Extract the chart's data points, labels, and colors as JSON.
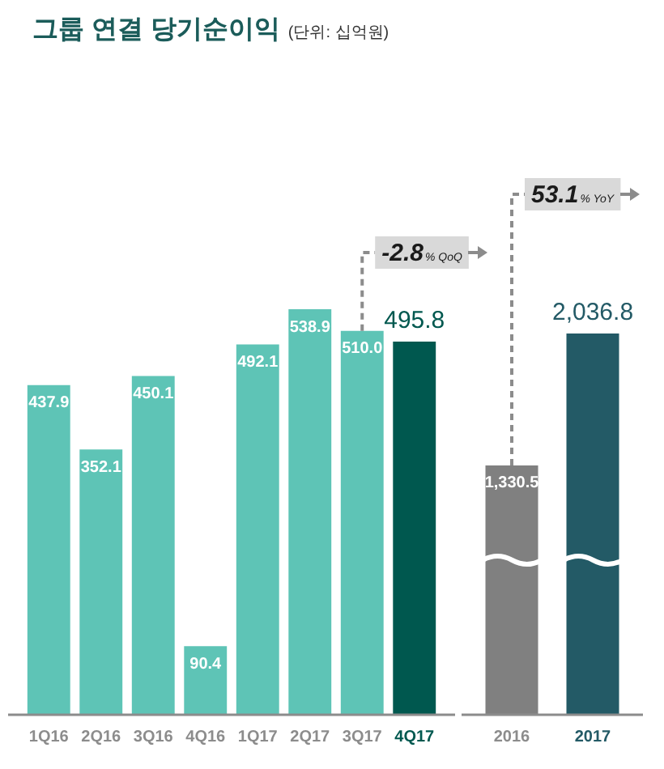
{
  "chart_data": [
    {
      "type": "bar",
      "title": "그룹 연결 당기순이익",
      "subtitle": "(단위: 십억원)",
      "categories": [
        "1Q16",
        "2Q16",
        "3Q16",
        "4Q16",
        "1Q17",
        "2Q17",
        "3Q17",
        "4Q17"
      ],
      "values": [
        437.9,
        352.1,
        450.1,
        90.4,
        492.1,
        538.9,
        510.0,
        495.8
      ],
      "colors": [
        "#5ec4b6",
        "#5ec4b6",
        "#5ec4b6",
        "#5ec4b6",
        "#5ec4b6",
        "#5ec4b6",
        "#5ec4b6",
        "#00584f"
      ],
      "value_labels": [
        "437.9",
        "352.1",
        "450.1",
        "90.4",
        "492.1",
        "538.9",
        "510.0",
        "495.8"
      ],
      "annotations": [
        {
          "text": "-2.8% QoQ",
          "x": "3Q17",
          "y": 510.0
        }
      ]
    },
    {
      "type": "bar",
      "categories": [
        "2016",
        "2017"
      ],
      "values": [
        1330.5,
        2036.8
      ],
      "colors": [
        "#808080",
        "#235a66"
      ],
      "value_labels": [
        "1,330.5",
        "2,036.8"
      ],
      "annotations": [
        {
          "text": "53.1% YoY",
          "x": "2016",
          "y": 1330.5
        }
      ]
    }
  ]
}
